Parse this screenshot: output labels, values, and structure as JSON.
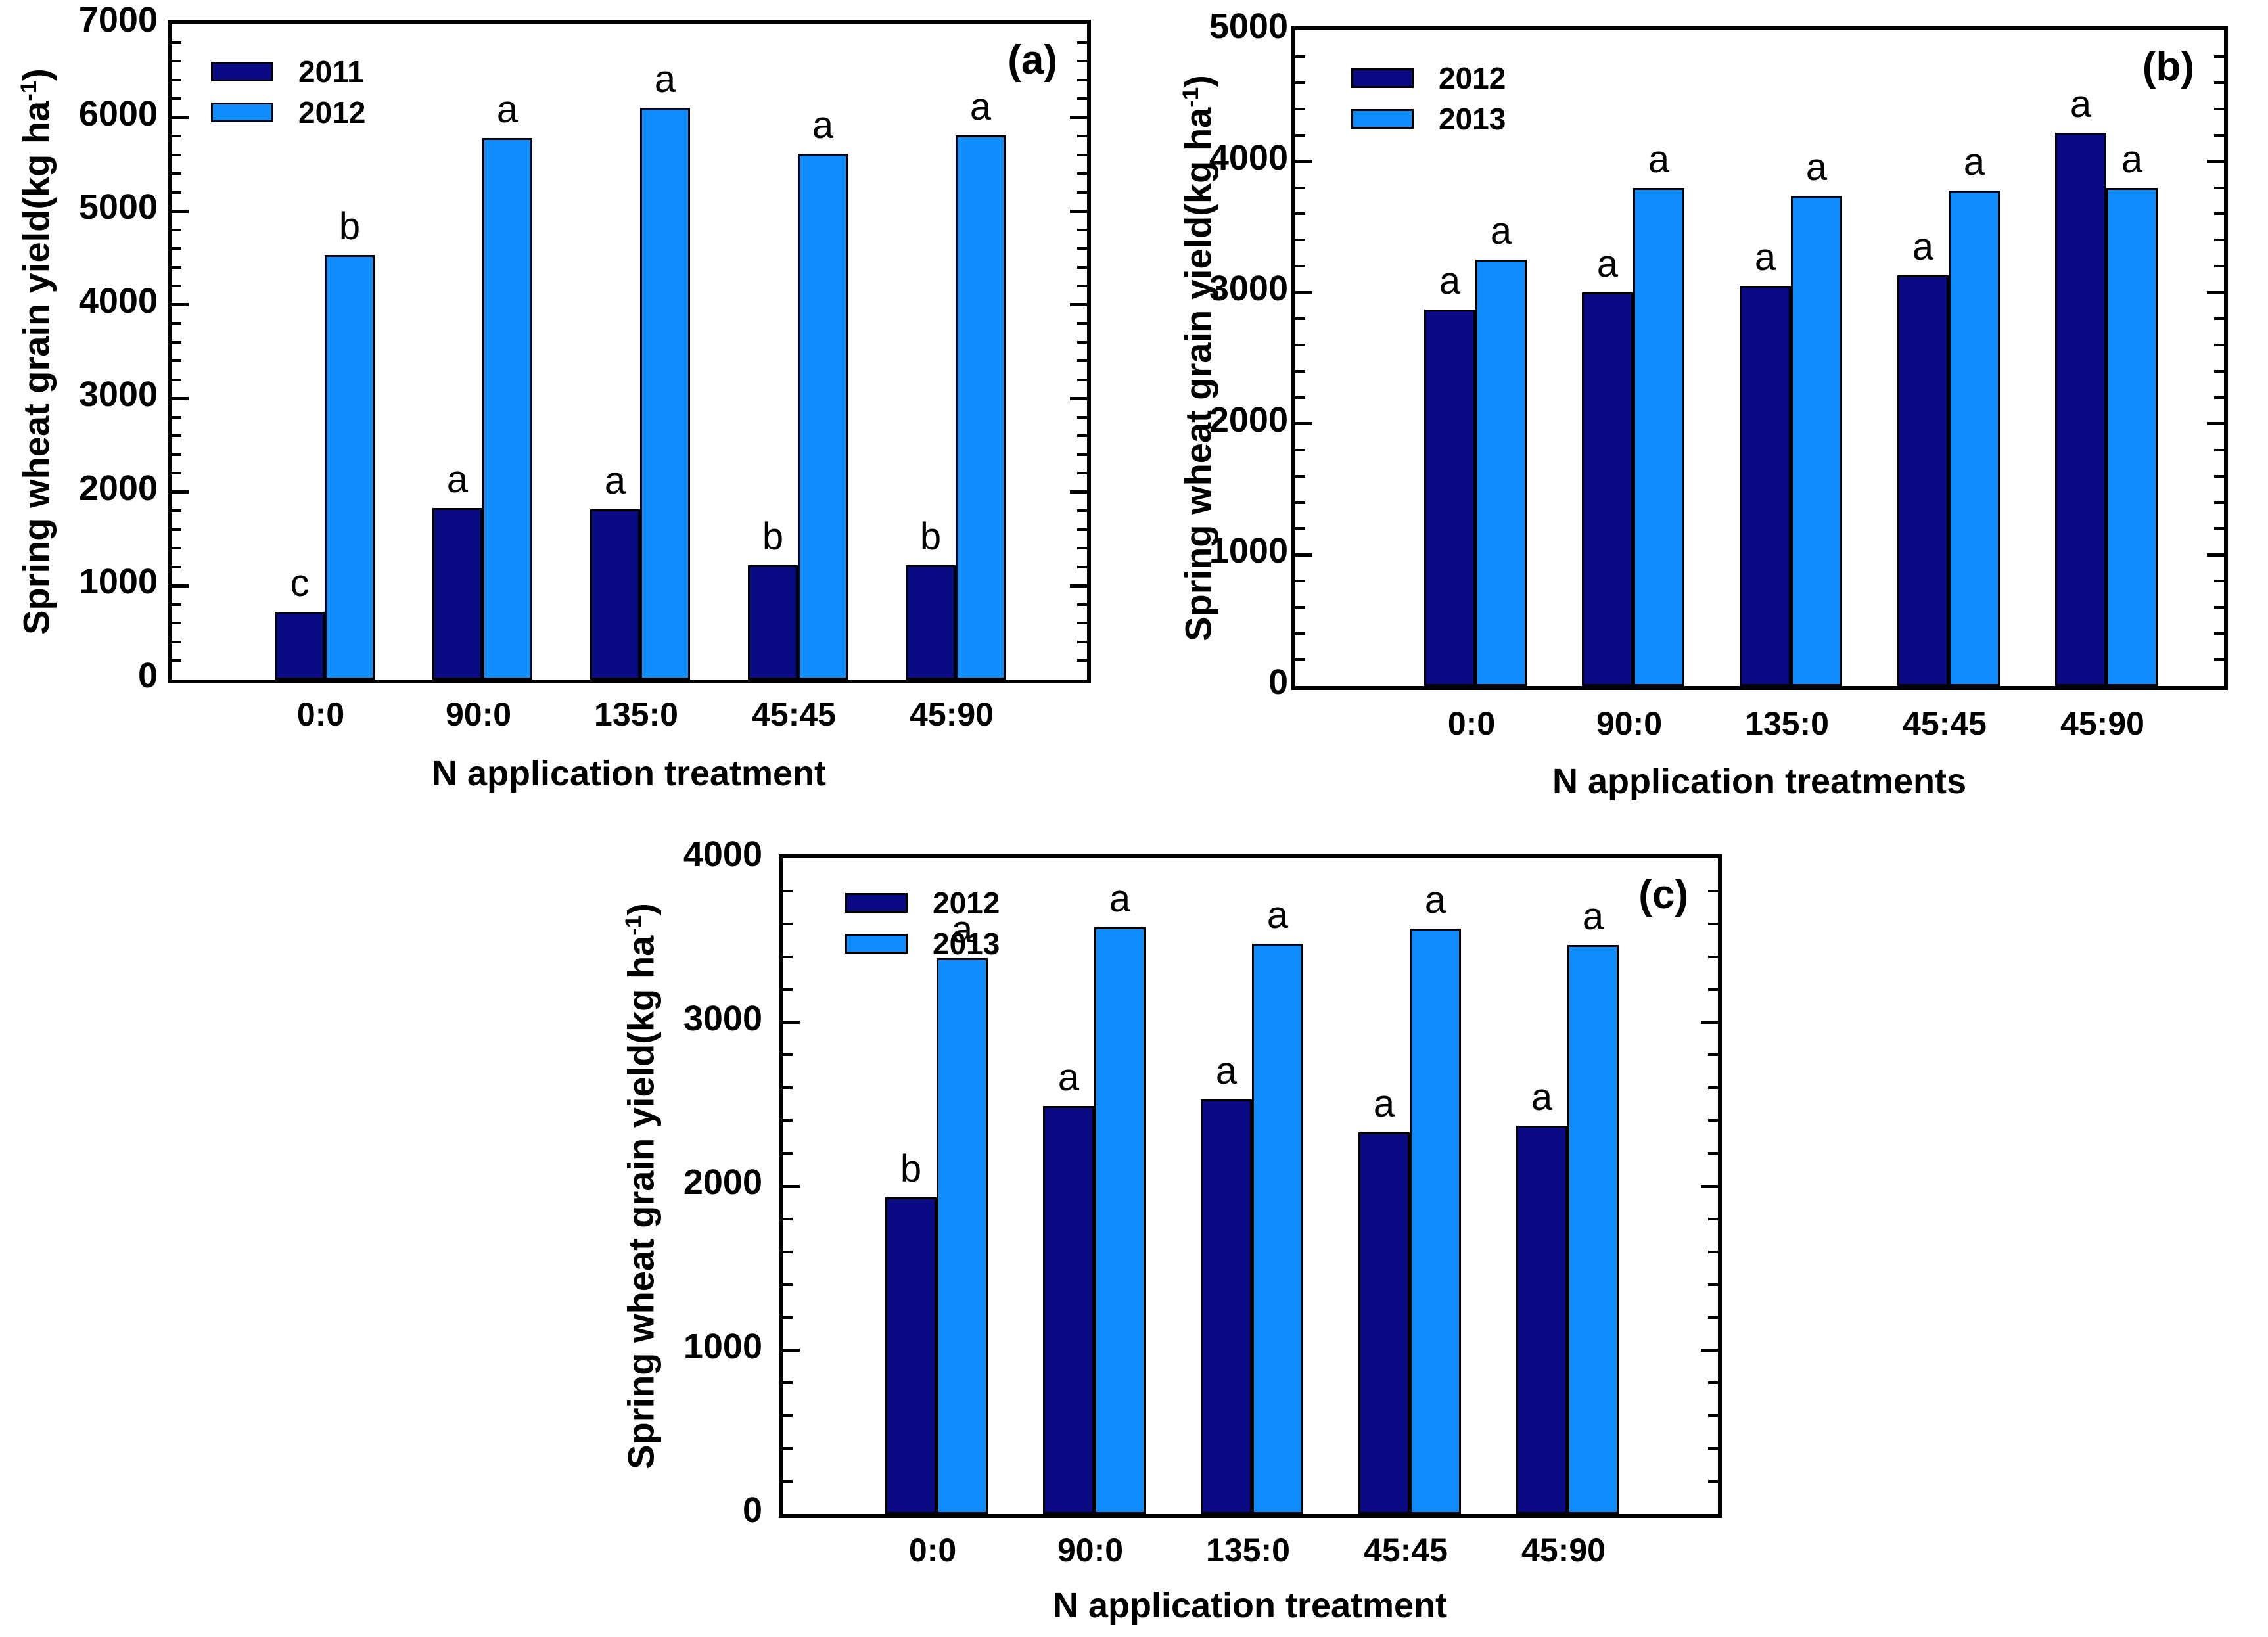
{
  "chart_data": [
    {
      "type": "bar",
      "panel_label": "(a)",
      "title": "",
      "categories": [
        "0:0",
        "90:0",
        "135:0",
        "45:45",
        "45:90"
      ],
      "series": [
        {
          "name": "2011",
          "color": "#0A0A84",
          "values": [
            720,
            1830,
            1820,
            1220,
            1220
          ],
          "sig_letters": [
            "c",
            "a",
            "a",
            "b",
            "b"
          ]
        },
        {
          "name": "2012",
          "color": "#0F8DFF",
          "values": [
            4530,
            5780,
            6100,
            5610,
            5810
          ],
          "sig_letters": [
            "b",
            "a",
            "a",
            "a",
            "a"
          ]
        }
      ],
      "xlabel": "N application treatment",
      "ylabel": "Spring wheat grain yield(kg ha⁻¹)",
      "ylabel_parts": {
        "prefix": "Spring wheat grain yield(kg ha",
        "sup": "-1",
        "suffix": ")"
      },
      "ylim": [
        0,
        7000
      ],
      "ytick_major": 1000,
      "ytick_minor": 200,
      "ytick_labels": [
        "0",
        "1000",
        "2000",
        "3000",
        "4000",
        "5000",
        "6000",
        "7000"
      ],
      "legend_position": "top-left",
      "grid": false
    },
    {
      "type": "bar",
      "panel_label": "(b)",
      "title": "",
      "categories": [
        "0:0",
        "90:0",
        "135:0",
        "45:45",
        "45:90"
      ],
      "series": [
        {
          "name": "2012",
          "color": "#0A0A84",
          "values": [
            2870,
            3000,
            3050,
            3130,
            4220
          ],
          "sig_letters": [
            "a",
            "a",
            "a",
            "a",
            "a"
          ]
        },
        {
          "name": "2013",
          "color": "#0F8DFF",
          "values": [
            3250,
            3800,
            3740,
            3780,
            3800
          ],
          "sig_letters": [
            "a",
            "a",
            "a",
            "a",
            "a"
          ]
        }
      ],
      "xlabel": "N application treatments",
      "ylabel": "Spring wheat grain yield(kg ha⁻¹)",
      "ylabel_parts": {
        "prefix": "Spring wheat grain yield(kg ha",
        "sup": "-1",
        "suffix": ")"
      },
      "ylim": [
        0,
        5000
      ],
      "ytick_major": 1000,
      "ytick_minor": 200,
      "ytick_labels": [
        "0",
        "1000",
        "2000",
        "3000",
        "4000",
        "5000"
      ],
      "legend_position": "top-left",
      "grid": false
    },
    {
      "type": "bar",
      "panel_label": "(c)",
      "title": "",
      "categories": [
        "0:0",
        "90:0",
        "135:0",
        "45:45",
        "45:90"
      ],
      "series": [
        {
          "name": "2012",
          "color": "#0A0A84",
          "values": [
            1930,
            2490,
            2530,
            2330,
            2370
          ],
          "sig_letters": [
            "b",
            "a",
            "a",
            "a",
            "a"
          ]
        },
        {
          "name": "2013",
          "color": "#0F8DFF",
          "values": [
            3390,
            3580,
            3480,
            3570,
            3470
          ],
          "sig_letters": [
            "a",
            "a",
            "a",
            "a",
            "a"
          ]
        }
      ],
      "xlabel": "N application treatment",
      "ylabel": "Spring wheat grain yield(kg ha⁻¹)",
      "ylabel_parts": {
        "prefix": "Spring wheat grain yield(kg ha",
        "sup": "-1",
        "suffix": ")"
      },
      "ylim": [
        0,
        4000
      ],
      "ytick_major": 1000,
      "ytick_minor": 200,
      "ytick_labels": [
        "0",
        "1000",
        "2000",
        "3000",
        "4000"
      ],
      "legend_position": "top-left",
      "grid": false
    }
  ]
}
